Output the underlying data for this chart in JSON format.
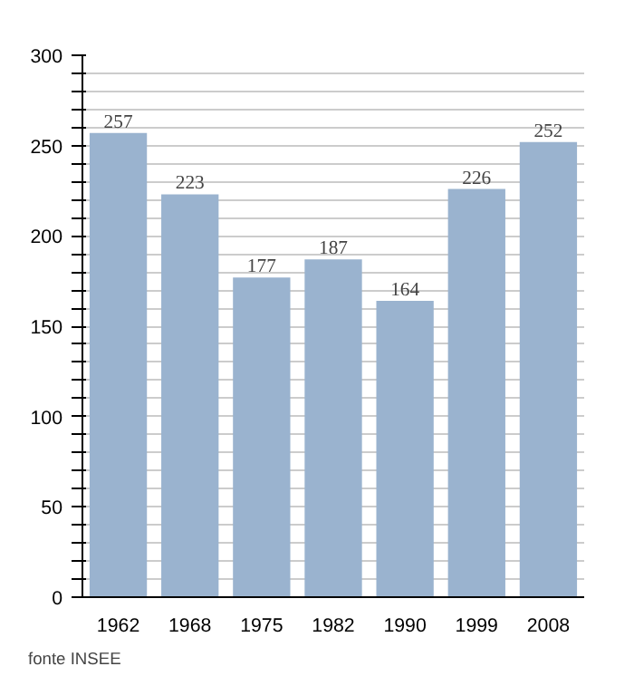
{
  "chart_data": {
    "type": "bar",
    "categories": [
      "1962",
      "1968",
      "1975",
      "1982",
      "1990",
      "1999",
      "2008"
    ],
    "values": [
      257,
      223,
      177,
      187,
      164,
      226,
      252
    ],
    "color": "#9ab3cf",
    "data_labels": true,
    "grid": "y",
    "ylim": [
      0,
      300
    ],
    "yticks": [
      0,
      {
        "value": 10,
        "label": null
      },
      {
        "value": 20,
        "label": null
      },
      {
        "value": 30,
        "label": null
      },
      {
        "value": 40,
        "label": null
      },
      50,
      {
        "value": 60,
        "label": null
      },
      {
        "value": 70,
        "label": null
      },
      {
        "value": 80,
        "label": null
      },
      {
        "value": 90,
        "label": null
      },
      100,
      {
        "value": 110,
        "label": null
      },
      {
        "value": 120,
        "label": null
      },
      {
        "value": 130,
        "label": null
      },
      {
        "value": 140,
        "label": null
      },
      150,
      {
        "value": 160,
        "label": null
      },
      {
        "value": 170,
        "label": null
      },
      {
        "value": 180,
        "label": null
      },
      {
        "value": 190,
        "label": null
      },
      200,
      {
        "value": 210,
        "label": null
      },
      {
        "value": 220,
        "label": null
      },
      {
        "value": 230,
        "label": null
      },
      {
        "value": 240,
        "label": null
      },
      250,
      {
        "value": 260,
        "label": null
      },
      {
        "value": 270,
        "label": null
      },
      {
        "value": 280,
        "label": null
      },
      {
        "value": 290,
        "label": null
      },
      300
    ],
    "annotations": [
      "fonte INSEE"
    ]
  }
}
